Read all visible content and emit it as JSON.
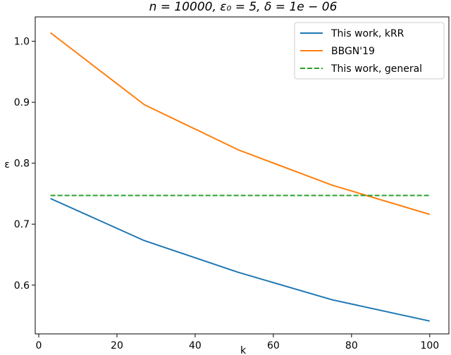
{
  "chart_data": {
    "type": "line",
    "title": "n = 10000, ε₀ = 5, δ = 1e − 06",
    "xlabel": "k",
    "ylabel": "ε",
    "xlim": [
      -0.9,
      104.9
    ],
    "ylim": [
      0.52,
      1.04
    ],
    "xticks": [
      0,
      20,
      40,
      60,
      80,
      100
    ],
    "yticks": [
      0.6,
      0.7,
      0.8,
      0.9,
      1.0
    ],
    "ytick_labels": [
      "0.6",
      "0.7",
      "0.8",
      "0.9",
      "1.0"
    ],
    "grid": false,
    "legend_position": "top-right",
    "series": [
      {
        "name": "This work, kRR",
        "color": "#1f77b4",
        "style": "solid",
        "x": [
          3,
          27,
          51,
          75,
          100
        ],
        "y": [
          0.742,
          0.673,
          0.621,
          0.576,
          0.541
        ]
      },
      {
        "name": "BBGN'19",
        "color": "#ff7f0e",
        "style": "solid",
        "x": [
          3,
          27,
          51,
          75,
          100
        ],
        "y": [
          1.014,
          0.896,
          0.822,
          0.764,
          0.716
        ]
      },
      {
        "name": "This work, general",
        "color": "#2ca02c",
        "style": "dashed",
        "x": [
          3,
          100
        ],
        "y": [
          0.747,
          0.747
        ]
      }
    ]
  }
}
